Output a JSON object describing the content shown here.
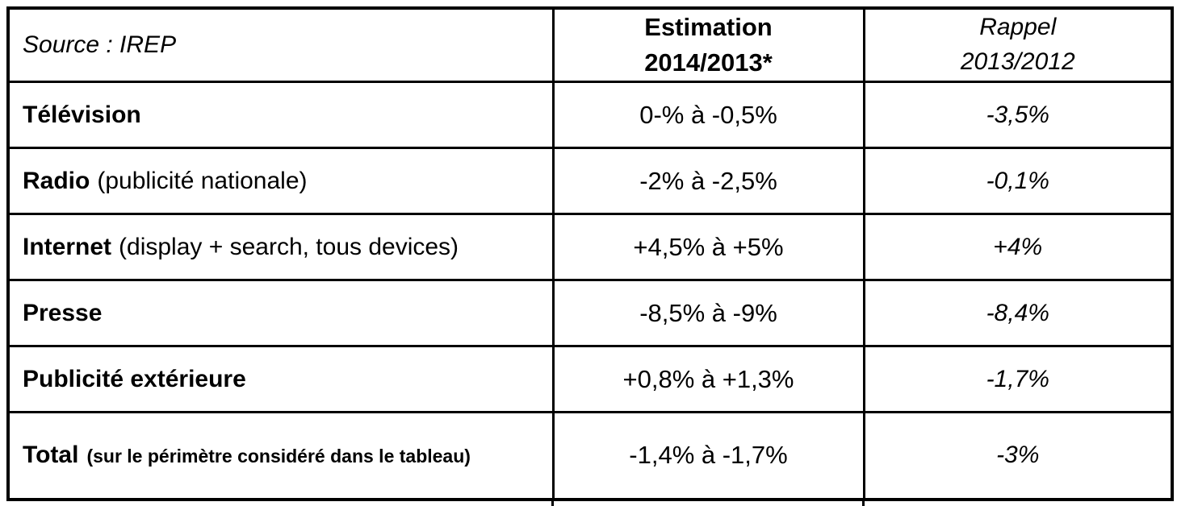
{
  "table": {
    "header": {
      "source": "Source : IREP",
      "estimation": [
        "Estimation",
        "2014/2013*"
      ],
      "rappel": [
        "Rappel",
        "2013/2012"
      ]
    },
    "rows": [
      {
        "label": "Télévision",
        "note": "",
        "note_style": "normal",
        "estimation": "0-% à -0,5%",
        "rappel": "-3,5%"
      },
      {
        "label": "Radio",
        "note": "(publicité nationale)",
        "note_style": "normal",
        "estimation": "-2% à -2,5%",
        "rappel": "-0,1%"
      },
      {
        "label": "Internet",
        "note": "(display + search, tous devices)",
        "note_style": "normal",
        "estimation": "+4,5% à +5%",
        "rappel": "+4%"
      },
      {
        "label": "Presse",
        "note": "",
        "note_style": "normal",
        "estimation": "-8,5% à -9%",
        "rappel": "-8,4%"
      },
      {
        "label": "Publicité extérieure",
        "note": "",
        "note_style": "normal",
        "estimation": "+0,8% à +1,3%",
        "rappel": "-1,7%"
      },
      {
        "label": "Total",
        "note": "(sur le périmètre considéré dans le tableau)",
        "note_style": "bold-small",
        "estimation": "-1,4% à -1,7%",
        "rappel": "-3%"
      }
    ],
    "colors": {
      "border": "#000000",
      "text": "#000000",
      "background": "#ffffff"
    }
  },
  "chart_data": {
    "type": "table",
    "columns": [
      "Source : IREP",
      "Estimation 2014/2013*",
      "Rappel 2013/2012"
    ],
    "rows": [
      [
        "Télévision",
        "0-% à -0,5%",
        "-3,5%"
      ],
      [
        "Radio (publicité nationale)",
        "-2% à -2,5%",
        "-0,1%"
      ],
      [
        "Internet (display + search, tous devices)",
        "+4,5% à +5%",
        "+4%"
      ],
      [
        "Presse",
        "-8,5% à -9%",
        "-8,4%"
      ],
      [
        "Publicité extérieure",
        "+0,8% à +1,3%",
        "-1,7%"
      ],
      [
        "Total (sur le périmètre considéré dans le tableau)",
        "-1,4% à -1,7%",
        "-3%"
      ]
    ]
  }
}
